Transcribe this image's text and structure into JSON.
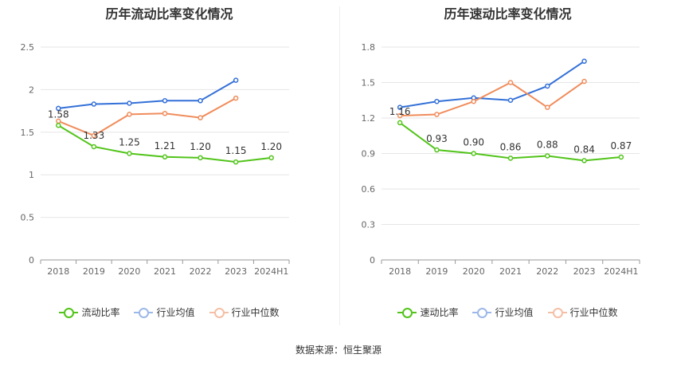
{
  "source_text": "数据来源：恒生聚源",
  "colors": {
    "main": "#52c41a",
    "avg": "#3370d8",
    "median": "#f08c5b"
  },
  "chart_data": [
    {
      "type": "line",
      "title": "历年流动比率变化情况",
      "categories": [
        "2018",
        "2019",
        "2020",
        "2021",
        "2022",
        "2023",
        "2024H1"
      ],
      "ylim": [
        0,
        2.5
      ],
      "yticks": [
        0,
        0.5,
        1,
        1.5,
        2,
        2.5
      ],
      "ytick_labels": [
        "0",
        "0.5",
        "1",
        "1.5",
        "2",
        "2.5"
      ],
      "legend_position": "bottom",
      "series": [
        {
          "name": "流动比率",
          "key": "main",
          "values": [
            1.58,
            1.33,
            1.25,
            1.21,
            1.2,
            1.15,
            1.2
          ],
          "labels": [
            "1.58",
            "1.33",
            "1.25",
            "1.21",
            "1.20",
            "1.15",
            "1.20"
          ]
        },
        {
          "name": "行业均值",
          "key": "avg",
          "values": [
            1.78,
            1.83,
            1.84,
            1.87,
            1.87,
            2.11,
            null
          ]
        },
        {
          "name": "行业中位数",
          "key": "median",
          "values": [
            1.63,
            1.46,
            1.71,
            1.72,
            1.67,
            1.9,
            null
          ]
        }
      ]
    },
    {
      "type": "line",
      "title": "历年速动比率变化情况",
      "categories": [
        "2018",
        "2019",
        "2020",
        "2021",
        "2022",
        "2023",
        "2024H1"
      ],
      "ylim": [
        0,
        1.8
      ],
      "yticks": [
        0,
        0.3,
        0.6,
        0.9,
        1.2,
        1.5,
        1.8
      ],
      "ytick_labels": [
        "0",
        "0.3",
        "0.6",
        "0.9",
        "1.2",
        "1.5",
        "1.8"
      ],
      "legend_position": "bottom",
      "series": [
        {
          "name": "速动比率",
          "key": "main",
          "values": [
            1.16,
            0.93,
            0.9,
            0.86,
            0.88,
            0.84,
            0.87
          ],
          "labels": [
            "1.16",
            "0.93",
            "0.90",
            "0.86",
            "0.88",
            "0.84",
            "0.87"
          ]
        },
        {
          "name": "行业均值",
          "key": "avg",
          "values": [
            1.29,
            1.34,
            1.37,
            1.35,
            1.47,
            1.68,
            null
          ]
        },
        {
          "name": "行业中位数",
          "key": "median",
          "values": [
            1.22,
            1.23,
            1.34,
            1.5,
            1.29,
            1.51,
            null
          ]
        }
      ]
    }
  ]
}
